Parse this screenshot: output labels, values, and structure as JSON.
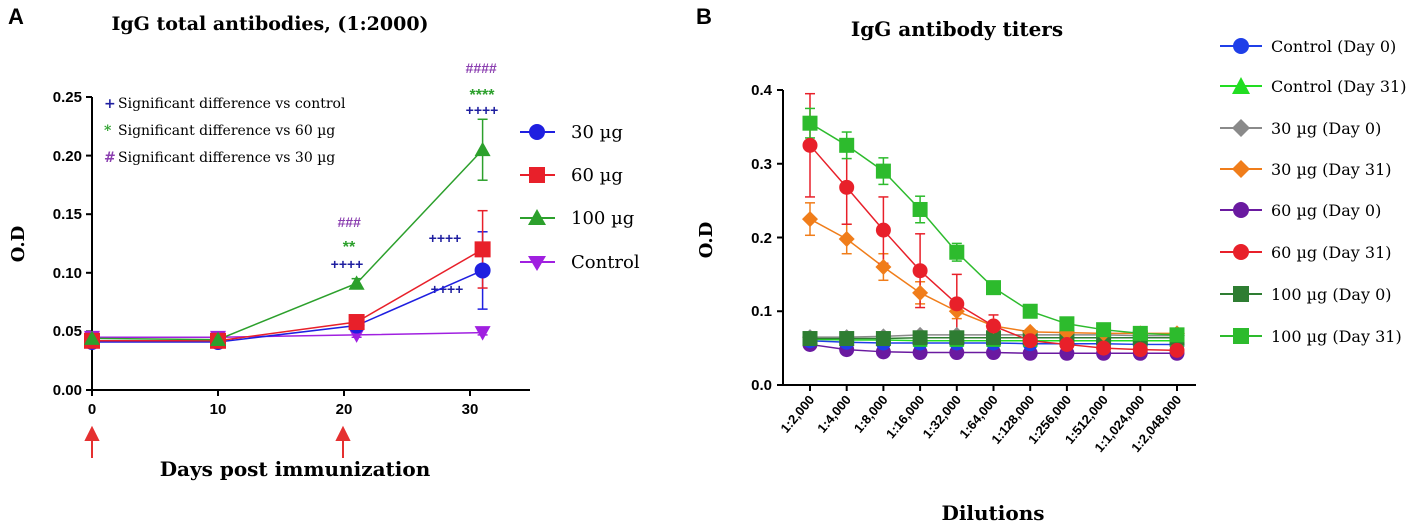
{
  "chart_data": [
    {
      "panel_label": "A",
      "type": "line",
      "title": "IgG total antibodies, (1:2000)",
      "xlabel": "Days post immunization",
      "ylabel": "O.D",
      "xlim": [
        0,
        35
      ],
      "ylim": [
        0,
        0.25
      ],
      "xticks": [
        "0",
        "10",
        "20",
        "30"
      ],
      "yticks": [
        "0.00",
        "0.05",
        "0.10",
        "0.15",
        "0.20",
        "0.25"
      ],
      "x": [
        0,
        10,
        21,
        31
      ],
      "immunization_days": [
        0,
        21
      ],
      "series": [
        {
          "name": "30 µg",
          "color": "#1f1fe0",
          "marker": "circle",
          "values": [
            0.041,
            0.041,
            0.055,
            0.102
          ],
          "errors": [
            0.003,
            0.003,
            0.005,
            0.033
          ]
        },
        {
          "name": "60 µg",
          "color": "#e8202a",
          "marker": "square",
          "values": [
            0.042,
            0.042,
            0.058,
            0.12
          ],
          "errors": [
            0.003,
            0.003,
            0.005,
            0.033
          ]
        },
        {
          "name": "100 µg",
          "color": "#2ca02c",
          "marker": "triangle-up",
          "values": [
            0.044,
            0.043,
            0.091,
            0.205
          ],
          "errors": [
            0.003,
            0.003,
            0.004,
            0.026
          ]
        },
        {
          "name": "Control",
          "color": "#a020e0",
          "marker": "triangle-down",
          "values": [
            0.045,
            0.045,
            0.047,
            0.049
          ],
          "errors": [
            0.002,
            0.002,
            0.002,
            0.002
          ]
        }
      ],
      "annotation_legend": [
        {
          "symbol": "+",
          "text": "Significant difference vs control",
          "color": "#1f1fa0"
        },
        {
          "symbol": "*",
          "text": "Significant difference vs 60 µg",
          "color": "#2ca02c"
        },
        {
          "symbol": "#",
          "text": "Significant difference vs 30 µg",
          "color": "#8b3fb0"
        }
      ],
      "annotations": [
        {
          "text": "###",
          "color": "#8b3fb0"
        },
        {
          "text": "**",
          "color": "#2ca02c"
        },
        {
          "text": "++++",
          "color": "#1f1fa0"
        },
        {
          "text": "####",
          "color": "#8b3fb0"
        },
        {
          "text": "****",
          "color": "#2ca02c"
        },
        {
          "text": "++++",
          "color": "#1f1fa0"
        },
        {
          "text": "++++",
          "color": "#1f1fa0"
        },
        {
          "text": "++++",
          "color": "#1f1fa0"
        }
      ]
    },
    {
      "panel_label": "B",
      "type": "line",
      "title": "IgG antibody titers",
      "xlabel": "Dilutions",
      "ylabel": "O.D",
      "ylim": [
        0,
        0.4
      ],
      "yticks": [
        "0.0",
        "0.1",
        "0.2",
        "0.3",
        "0.4"
      ],
      "categories": [
        "1:2,000",
        "1:4,000",
        "1:8,000",
        "1:16,000",
        "1:32,000",
        "1:64,000",
        "1:128,000",
        "1:256,000",
        "1:512,000",
        "1:1,024,000",
        "1:2,048,000"
      ],
      "series": [
        {
          "name": "Control (Day 0)",
          "color": "#1f3fe8",
          "marker": "circle",
          "values": [
            0.06,
            0.058,
            0.057,
            0.057,
            0.057,
            0.057,
            0.056,
            0.056,
            0.056,
            0.055,
            0.055
          ]
        },
        {
          "name": "Control (Day 31)",
          "color": "#22dd22",
          "marker": "triangle-up",
          "values": [
            0.062,
            0.061,
            0.061,
            0.06,
            0.06,
            0.06,
            0.06,
            0.06,
            0.06,
            0.06,
            0.06
          ]
        },
        {
          "name": "30 µg (Day 0)",
          "color": "#8a8a8a",
          "marker": "diamond",
          "values": [
            0.065,
            0.065,
            0.066,
            0.068,
            0.068,
            0.068,
            0.068,
            0.068,
            0.068,
            0.067,
            0.067
          ]
        },
        {
          "name": "30 µg (Day 31)",
          "color": "#f07d1a",
          "marker": "diamond",
          "values": [
            0.225,
            0.198,
            0.16,
            0.125,
            0.1,
            0.08,
            0.072,
            0.071,
            0.07,
            0.07,
            0.07
          ]
        },
        {
          "name": "60 µg (Day 0)",
          "color": "#6a1aa0",
          "marker": "circle",
          "values": [
            0.055,
            0.048,
            0.045,
            0.044,
            0.044,
            0.044,
            0.043,
            0.043,
            0.043,
            0.043,
            0.043
          ]
        },
        {
          "name": "60 µg (Day 31)",
          "color": "#e8202a",
          "marker": "circle",
          "values": [
            0.325,
            0.268,
            0.21,
            0.155,
            0.11,
            0.08,
            0.06,
            0.055,
            0.05,
            0.048,
            0.047
          ]
        },
        {
          "name": "100 µg (Day 0)",
          "color": "#2e7d32",
          "marker": "square",
          "values": [
            0.063,
            0.063,
            0.063,
            0.064,
            0.064,
            0.064,
            0.064,
            0.064,
            0.064,
            0.064,
            0.064
          ]
        },
        {
          "name": "100 µg (Day 31)",
          "color": "#2dbb2d",
          "marker": "square",
          "values": [
            0.355,
            0.325,
            0.29,
            0.238,
            0.18,
            0.132,
            0.1,
            0.083,
            0.075,
            0.07,
            0.068
          ]
        }
      ],
      "errors": {
        "30 µg (Day 31)": [
          0.022,
          0.02,
          0.018,
          0.015,
          0.01,
          0.005,
          0.003,
          0.003,
          0.003,
          0.003,
          0.003
        ],
        "60 µg (Day 31)": [
          0.07,
          0.05,
          0.045,
          0.05,
          0.04,
          0.015,
          0.008,
          0.005,
          0.004,
          0.003,
          0.003
        ],
        "100 µg (Day 31)": [
          0.02,
          0.018,
          0.018,
          0.018,
          0.012,
          0.006,
          0.004,
          0.004,
          0.003,
          0.003,
          0.003
        ]
      }
    }
  ]
}
